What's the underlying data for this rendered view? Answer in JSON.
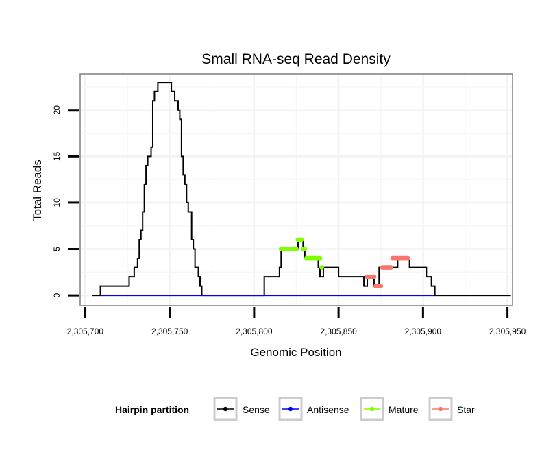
{
  "chart_data": {
    "type": "line",
    "title": "Small RNA-seq Read Density",
    "xlabel": "Genomic Position",
    "ylabel": "Total Reads",
    "xlim": [
      2305697,
      2305953
    ],
    "ylim": [
      -1.1,
      23.9
    ],
    "x_ticks": [
      2305700,
      2305750,
      2305800,
      2305850,
      2305900,
      2305950
    ],
    "x_tick_labels": [
      "2,305,700",
      "2,305,750",
      "2,305,800",
      "2,305,850",
      "2,305,900",
      "2,305,950"
    ],
    "y_ticks": [
      0,
      5,
      10,
      15,
      20
    ],
    "y_tick_labels": [
      "0",
      "5",
      "10",
      "15",
      "20"
    ],
    "grid": true,
    "legend": {
      "title": "Hairpin partition",
      "position": "bottom",
      "entries": [
        "Sense",
        "Antisense",
        "Mature",
        "Star"
      ]
    },
    "series": [
      {
        "name": "Sense",
        "color": "#000000",
        "style": "step-line",
        "x": [
          2305704,
          2305708,
          2305709,
          2305710,
          2305715,
          2305720,
          2305725,
          2305726,
          2305727,
          2305728,
          2305729,
          2305730,
          2305731,
          2305732,
          2305733,
          2305734,
          2305735,
          2305736,
          2305737,
          2305738,
          2305739,
          2305740,
          2305741,
          2305742,
          2305743,
          2305744,
          2305745,
          2305746,
          2305747,
          2305748,
          2305749,
          2305750,
          2305751,
          2305752,
          2305753,
          2305754,
          2305755,
          2305756,
          2305757,
          2305758,
          2305759,
          2305760,
          2305761,
          2305762,
          2305763,
          2305764,
          2305765,
          2305766,
          2305767,
          2305768,
          2305769,
          2305770,
          2305775,
          2305780,
          2305785,
          2305790,
          2305795,
          2305800,
          2305805,
          2305806,
          2305810,
          2305814,
          2305815,
          2305816,
          2305820,
          2305825,
          2305826,
          2305828,
          2305829,
          2305830,
          2305831,
          2305836,
          2305837,
          2305838,
          2305839,
          2305840,
          2305841,
          2305842,
          2305843,
          2305844,
          2305845,
          2305850,
          2305855,
          2305860,
          2305864,
          2305865,
          2305866,
          2305867,
          2305868,
          2305869,
          2305870,
          2305871,
          2305872,
          2305873,
          2305874,
          2305875,
          2305876,
          2305877,
          2305880,
          2305885,
          2305890,
          2305891,
          2305892,
          2305893,
          2305895,
          2305898,
          2305900,
          2305902,
          2305903,
          2305904,
          2305905,
          2305906,
          2305907,
          2305908,
          2305910,
          2305920,
          2305930,
          2305940,
          2305950,
          2305952
        ],
        "y": [
          0,
          0,
          1,
          1,
          1,
          1,
          1,
          2,
          2,
          2,
          3,
          3,
          4,
          6,
          7,
          9,
          12,
          14,
          15,
          15,
          16,
          21,
          22,
          22,
          23,
          23,
          23,
          23,
          23,
          23,
          23,
          23,
          22,
          22,
          21,
          21,
          20,
          19,
          15,
          13,
          12,
          10,
          9,
          9,
          6,
          5,
          3,
          3,
          2,
          1,
          0,
          0,
          0,
          0,
          0,
          0,
          0,
          0,
          0,
          2,
          2,
          2,
          3,
          5,
          5,
          5,
          6,
          6,
          5,
          4,
          4,
          4,
          4,
          3,
          2,
          2,
          3,
          3,
          3,
          3,
          3,
          2,
          2,
          2,
          2,
          1,
          1,
          2,
          2,
          2,
          2,
          1,
          1,
          1,
          3,
          3,
          3,
          3,
          3,
          4,
          4,
          4,
          3,
          3,
          3,
          3,
          3,
          2,
          2,
          2,
          1,
          1,
          0,
          0,
          0,
          0,
          0,
          0,
          0,
          0
        ]
      },
      {
        "name": "Antisense",
        "color": "#0000ff",
        "style": "line",
        "x": [
          2305709,
          2305770,
          2305806,
          2305907
        ],
        "y": [
          0,
          0,
          0,
          0
        ]
      },
      {
        "name": "Mature",
        "color": "#7fff00",
        "style": "points",
        "x": [
          2305816,
          2305817,
          2305818,
          2305819,
          2305820,
          2305821,
          2305822,
          2305823,
          2305824,
          2305825,
          2305826,
          2305827,
          2305828,
          2305829,
          2305830,
          2305831,
          2305832,
          2305833,
          2305834,
          2305835,
          2305836,
          2305837,
          2305838,
          2305839,
          2305840
        ],
        "y": [
          5,
          5,
          5,
          5,
          5,
          5,
          5,
          5,
          5,
          5,
          6,
          6,
          6,
          5,
          5,
          4,
          4,
          4,
          4,
          4,
          4,
          4,
          4,
          4,
          3
        ]
      },
      {
        "name": "Star",
        "color": "#f8766d",
        "style": "points",
        "x": [
          2305867,
          2305868,
          2305869,
          2305870,
          2305871,
          2305872,
          2305873,
          2305874,
          2305875,
          2305876,
          2305877,
          2305878,
          2305879,
          2305880,
          2305881,
          2305882,
          2305883,
          2305884,
          2305885,
          2305886,
          2305887,
          2305888,
          2305889,
          2305890,
          2305891
        ],
        "y": [
          2,
          2,
          2,
          2,
          2,
          1,
          1,
          1,
          1,
          3,
          3,
          3,
          3,
          3,
          3,
          4,
          4,
          4,
          4,
          4,
          4,
          4,
          4,
          4,
          4
        ]
      }
    ]
  }
}
